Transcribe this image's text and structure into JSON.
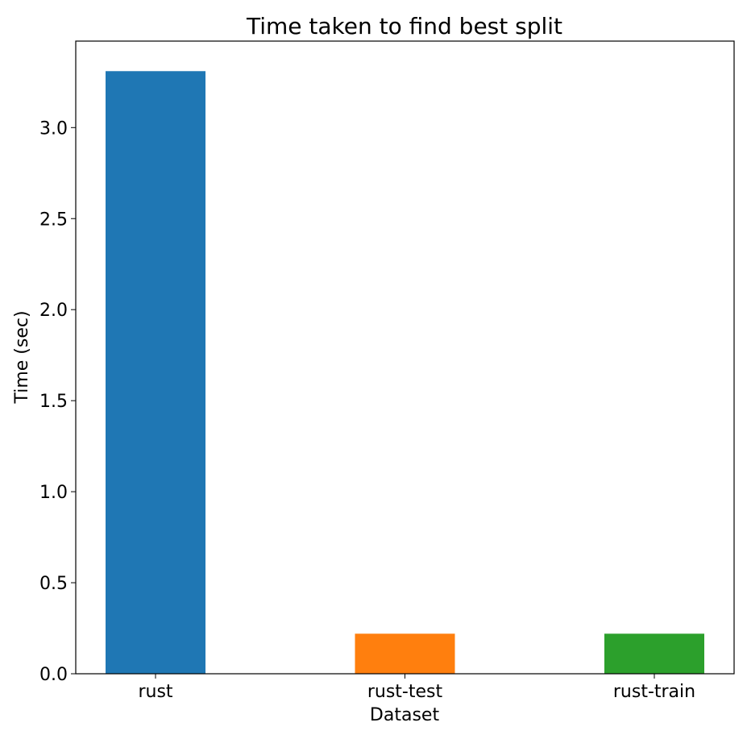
{
  "chart_data": {
    "type": "bar",
    "title": "Time taken to find best split",
    "xlabel": "Dataset",
    "ylabel": "Time (sec)",
    "categories": [
      "rust",
      "rust-test",
      "rust-train"
    ],
    "values": [
      3.31,
      0.22,
      0.22
    ],
    "colors": [
      "#1f77b4",
      "#ff7f0e",
      "#2ca02c"
    ],
    "ylim": [
      0,
      3.475
    ],
    "yticks": [
      "0.0",
      "0.5",
      "1.0",
      "1.5",
      "2.0",
      "2.5",
      "3.0"
    ],
    "grid": false,
    "legend": "none"
  }
}
